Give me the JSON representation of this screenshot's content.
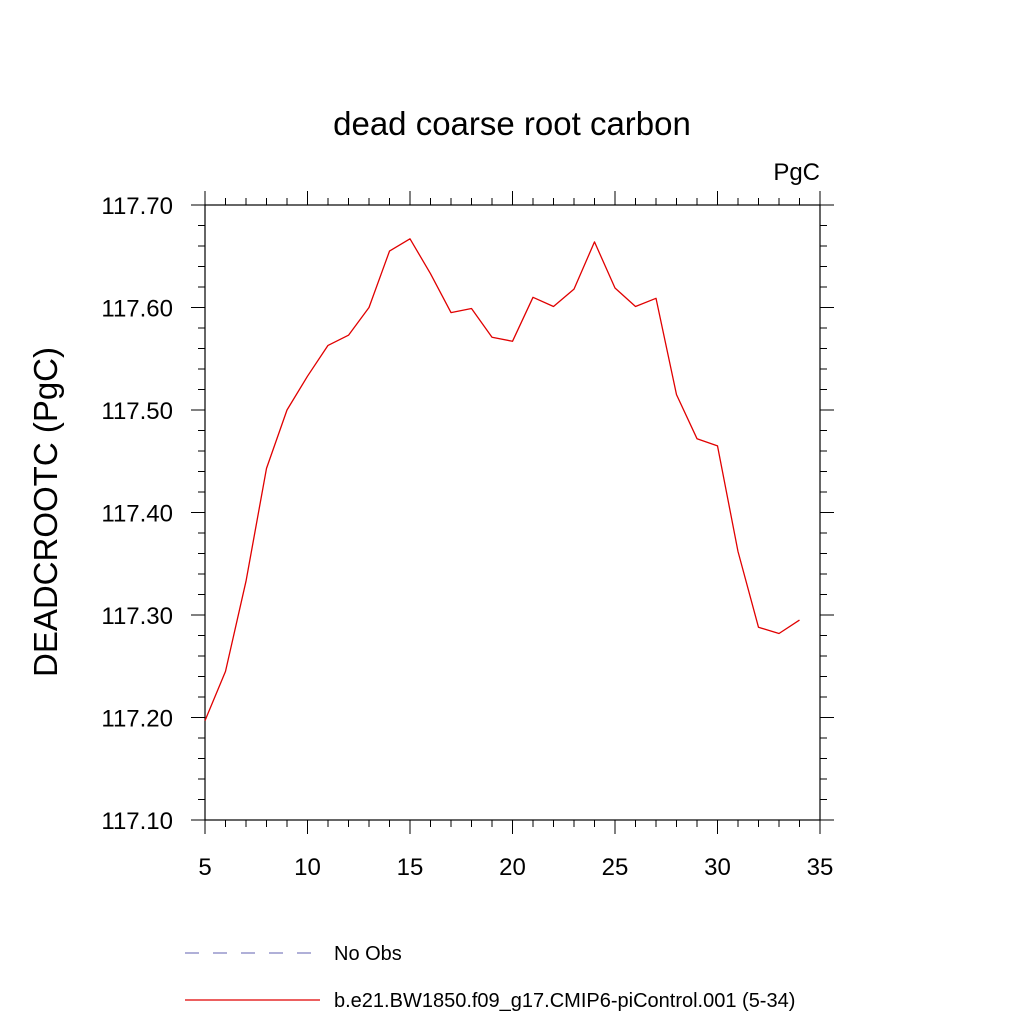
{
  "chart_data": {
    "type": "line",
    "title": "dead coarse root carbon",
    "units_label": "PgC",
    "ylabel": "DEADCROOTC  (PgC)",
    "xlabel": "",
    "xlim": [
      5,
      35
    ],
    "ylim": [
      117.1,
      117.7
    ],
    "x_ticks": [
      5,
      10,
      15,
      20,
      25,
      30,
      35
    ],
    "y_ticks": [
      117.1,
      117.2,
      117.3,
      117.4,
      117.5,
      117.6,
      117.7
    ],
    "y_tick_labels": [
      "117.10",
      "117.20",
      "117.30",
      "117.40",
      "117.50",
      "117.60",
      "117.70"
    ],
    "grid": false,
    "legend_position": "bottom",
    "legend": [
      {
        "name": "No Obs",
        "color": "#8080c0",
        "style": "dashed"
      },
      {
        "name": "b.e21.BW1850.f09_g17.CMIP6-piControl.001 (5-34)",
        "color": "#e00000",
        "style": "solid"
      }
    ],
    "series": [
      {
        "name": "b.e21.BW1850.f09_g17.CMIP6-piControl.001 (5-34)",
        "color": "#e00000",
        "x": [
          5,
          6,
          7,
          8,
          9,
          10,
          11,
          12,
          13,
          14,
          15,
          16,
          17,
          18,
          19,
          20,
          21,
          22,
          23,
          24,
          25,
          26,
          27,
          28,
          29,
          30,
          31,
          32,
          33,
          34
        ],
        "y": [
          117.197,
          117.245,
          117.333,
          117.443,
          117.5,
          117.533,
          117.563,
          117.573,
          117.6,
          117.655,
          117.667,
          117.633,
          117.595,
          117.599,
          117.571,
          117.567,
          117.61,
          117.601,
          117.618,
          117.664,
          117.619,
          117.601,
          117.609,
          117.515,
          117.472,
          117.465,
          117.362,
          117.288,
          117.282,
          117.295
        ]
      }
    ]
  }
}
